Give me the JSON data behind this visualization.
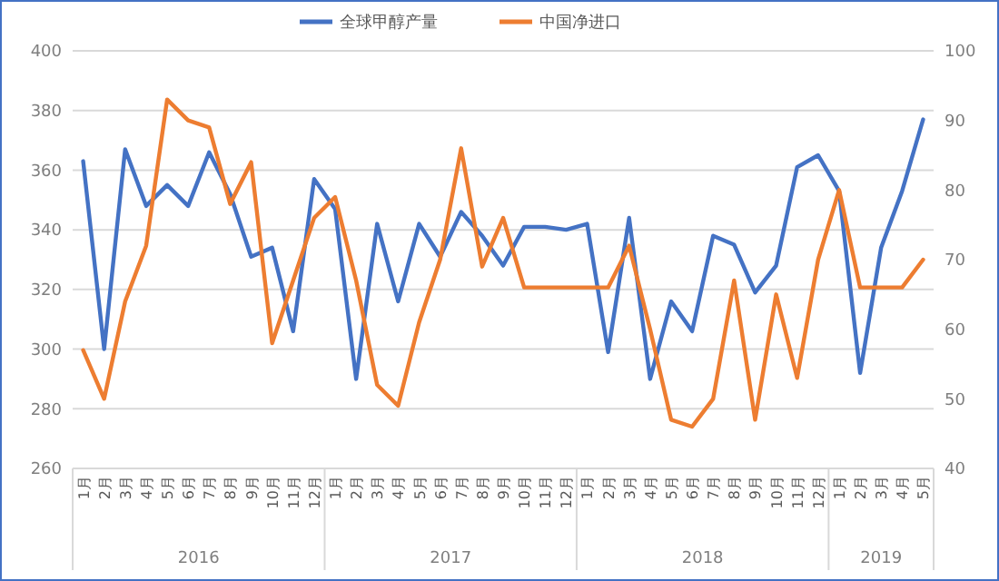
{
  "chart_data": {
    "type": "line",
    "categories": [
      "1月",
      "2月",
      "3月",
      "4月",
      "5月",
      "6月",
      "7月",
      "8月",
      "9月",
      "10月",
      "11月",
      "12月",
      "1月",
      "2月",
      "3月",
      "4月",
      "5月",
      "6月",
      "7月",
      "8月",
      "9月",
      "10月",
      "11月",
      "12月",
      "1月",
      "2月",
      "3月",
      "4月",
      "5月",
      "6月",
      "7月",
      "8月",
      "9月",
      "10月",
      "11月",
      "12月",
      "1月",
      "2月",
      "3月",
      "4月",
      "5月"
    ],
    "annotations": [
      "2016",
      "2017",
      "2018",
      "2019"
    ],
    "series": [
      {
        "name": "全球甲醇产量",
        "color": "#4472c4",
        "values": [
          363,
          300,
          367,
          348,
          355,
          348,
          366,
          352,
          331,
          334,
          306,
          357,
          347,
          290,
          342,
          316,
          342,
          331,
          346,
          338,
          328,
          341,
          341,
          340,
          342,
          299,
          344,
          290,
          316,
          306,
          338,
          335,
          319,
          328,
          361,
          365,
          353,
          292,
          334,
          353,
          377
        ]
      },
      {
        "name": "中国净进口",
        "color": "#ed7d31",
        "axis": "y2",
        "values": [
          57,
          50,
          64,
          72,
          93,
          90,
          89,
          78,
          84,
          58,
          67,
          76,
          79,
          67,
          52,
          49,
          61,
          70,
          86,
          69,
          76,
          66,
          66,
          66,
          66,
          66,
          72,
          60,
          47,
          46,
          50,
          67,
          47,
          65,
          53,
          70,
          80,
          66,
          66,
          66,
          70
        ]
      }
    ],
    "ylim": [
      260,
      400
    ],
    "yticks": [
      260,
      280,
      300,
      320,
      340,
      360,
      380,
      400
    ],
    "y2lim": [
      40,
      100
    ],
    "y2ticks": [
      40,
      50,
      60,
      70,
      80,
      90,
      100
    ],
    "grid": "y",
    "legend": "top",
    "line_style": "solid",
    "marker": "none"
  }
}
